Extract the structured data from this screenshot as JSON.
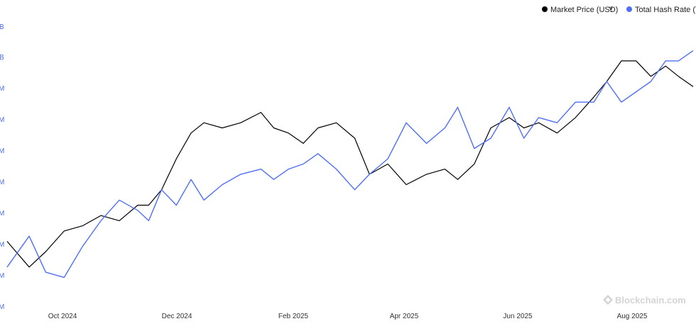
{
  "colors": {
    "price": "#000000",
    "hash": "#4f6ef7",
    "ytick": "#4b6cf0",
    "watermark": "#d4d4d4"
  },
  "legend": {
    "price_label": "Market Price (USD)",
    "chevron": "˅",
    "hash_label": "Total Hash Rate (TH"
  },
  "watermark": {
    "icon": "blockchain-logo-icon",
    "text": "Blockchain.com"
  },
  "chart_data": {
    "type": "line",
    "x_ticks": [
      "Oct 2024",
      "Dec 2024",
      "Feb 2025",
      "Apr 2025",
      "Jun 2025",
      "Aug 2025"
    ],
    "y_ticks_left_partial": [
      "B",
      "B",
      "M",
      "M",
      "M",
      "M",
      "M",
      "M",
      "M",
      "M"
    ],
    "grid": false,
    "legend_position": "top-right",
    "series": [
      {
        "name": "Market Price (USD)",
        "color": "#000000",
        "x": [
          "2024-08-20",
          "2024-09-01",
          "2024-09-10",
          "2024-09-20",
          "2024-09-30",
          "2024-10-10",
          "2024-10-20",
          "2024-10-30",
          "2024-11-05",
          "2024-11-12",
          "2024-11-20",
          "2024-11-28",
          "2024-12-05",
          "2024-12-15",
          "2024-12-25",
          "2025-01-05",
          "2025-01-12",
          "2025-01-20",
          "2025-01-28",
          "2025-02-05",
          "2025-02-15",
          "2025-02-25",
          "2025-03-05",
          "2025-03-15",
          "2025-03-25",
          "2025-04-05",
          "2025-04-15",
          "2025-04-22",
          "2025-05-01",
          "2025-05-10",
          "2025-05-20",
          "2025-05-28",
          "2025-06-05",
          "2025-06-15",
          "2025-06-25",
          "2025-07-05",
          "2025-07-12",
          "2025-07-20",
          "2025-07-28",
          "2025-08-05",
          "2025-08-13",
          "2025-08-20",
          "2025-08-28"
        ],
        "values": [
          0.83,
          0.78,
          0.81,
          0.85,
          0.86,
          0.88,
          0.87,
          0.9,
          0.9,
          0.93,
          0.99,
          1.04,
          1.06,
          1.05,
          1.06,
          1.08,
          1.05,
          1.04,
          1.02,
          1.05,
          1.06,
          1.03,
          0.96,
          0.98,
          0.94,
          0.96,
          0.97,
          0.95,
          0.98,
          1.05,
          1.07,
          1.05,
          1.06,
          1.04,
          1.07,
          1.11,
          1.14,
          1.18,
          1.18,
          1.15,
          1.17,
          1.15,
          1.13
        ]
      },
      {
        "name": "Total Hash Rate (TH",
        "color": "#4f6ef7",
        "x": [
          "2024-08-20",
          "2024-09-01",
          "2024-09-10",
          "2024-09-20",
          "2024-09-30",
          "2024-10-10",
          "2024-10-20",
          "2024-10-30",
          "2024-11-05",
          "2024-11-12",
          "2024-11-20",
          "2024-11-28",
          "2024-12-05",
          "2024-12-15",
          "2024-12-25",
          "2025-01-05",
          "2025-01-12",
          "2025-01-20",
          "2025-01-28",
          "2025-02-05",
          "2025-02-15",
          "2025-02-25",
          "2025-03-05",
          "2025-03-15",
          "2025-03-25",
          "2025-04-05",
          "2025-04-15",
          "2025-04-22",
          "2025-05-01",
          "2025-05-10",
          "2025-05-20",
          "2025-05-28",
          "2025-06-05",
          "2025-06-15",
          "2025-06-25",
          "2025-07-05",
          "2025-07-12",
          "2025-07-20",
          "2025-07-28",
          "2025-08-05",
          "2025-08-13",
          "2025-08-20",
          "2025-08-28"
        ],
        "values": [
          0.78,
          0.84,
          0.77,
          0.76,
          0.82,
          0.87,
          0.91,
          0.89,
          0.87,
          0.93,
          0.9,
          0.95,
          0.91,
          0.94,
          0.96,
          0.97,
          0.95,
          0.97,
          0.98,
          1.0,
          0.97,
          0.93,
          0.96,
          0.99,
          1.06,
          1.02,
          1.05,
          1.09,
          1.01,
          1.03,
          1.09,
          1.03,
          1.07,
          1.06,
          1.1,
          1.1,
          1.14,
          1.1,
          1.12,
          1.14,
          1.18,
          1.18,
          1.2
        ]
      }
    ]
  }
}
